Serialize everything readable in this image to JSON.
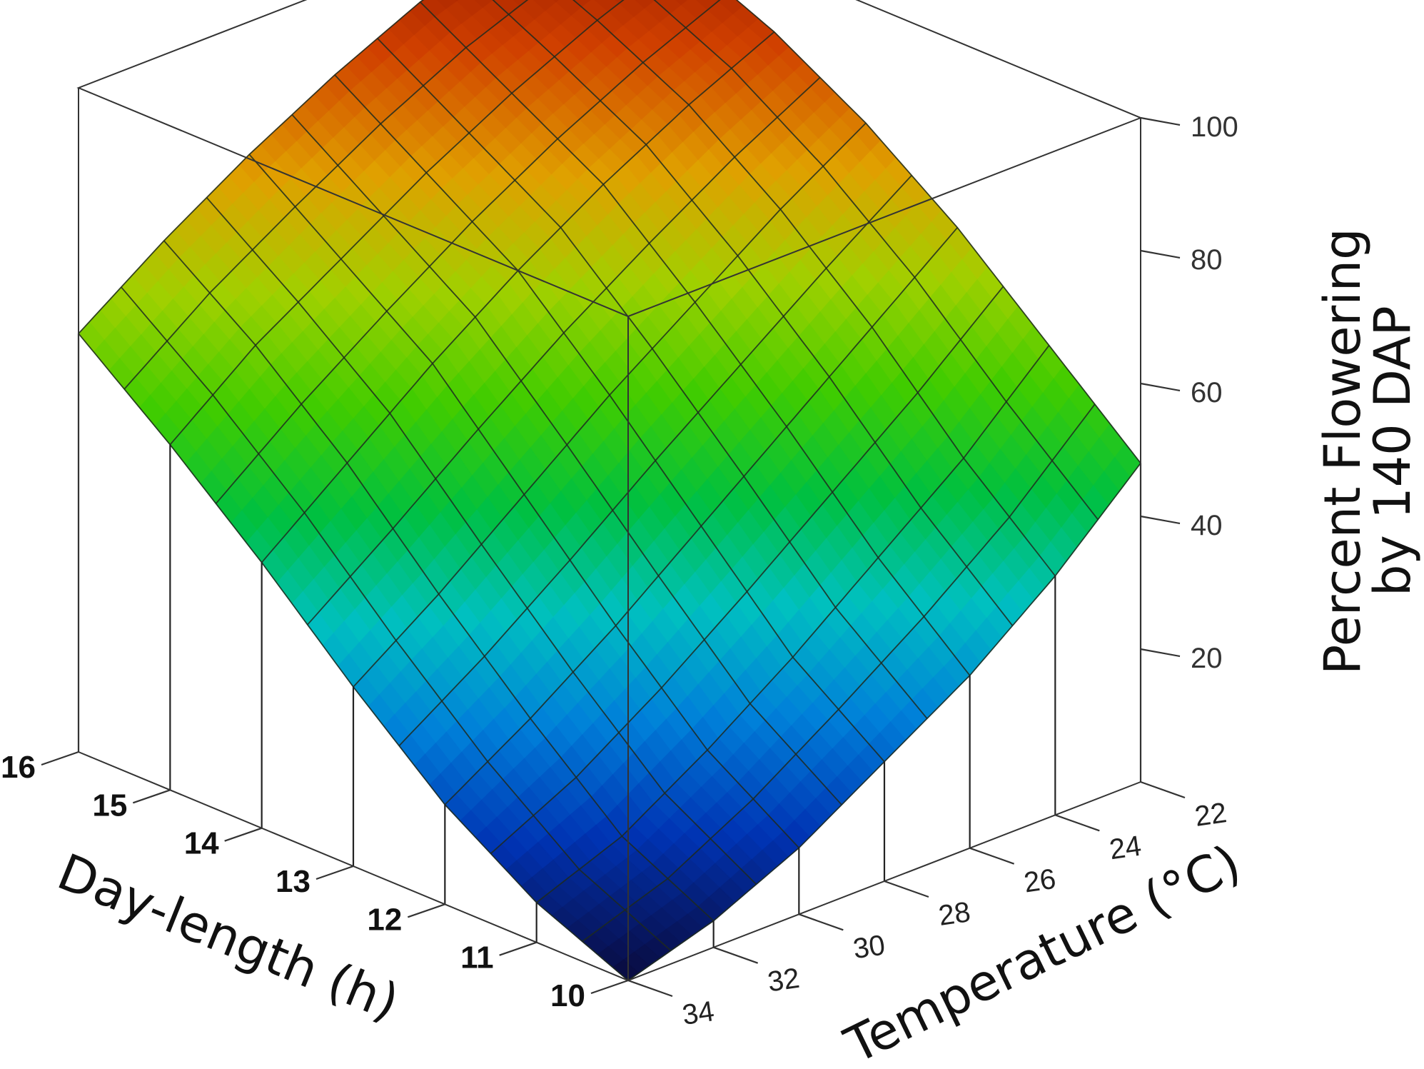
{
  "chart_data": {
    "type": "surface",
    "title": "",
    "zlabel_line1": "Percent Flowering",
    "zlabel_line2": "by 140 DAP",
    "xlabel": "Temperature (°C)",
    "ylabel": "Day-length (h)",
    "x_ticks": [
      "22",
      "24",
      "26",
      "28",
      "30",
      "32",
      "34"
    ],
    "y_ticks": [
      "10",
      "11",
      "12",
      "13",
      "14",
      "15",
      "16"
    ],
    "z_ticks": [
      "20",
      "40",
      "60",
      "80",
      "100"
    ],
    "xlim": [
      22,
      35
    ],
    "ylim": [
      10,
      16
    ],
    "zlim": [
      0,
      100
    ],
    "colormap": [
      "#0a0a3c",
      "#0033b3",
      "#0080d9",
      "#00c0c0",
      "#00c040",
      "#40cc00",
      "#a0d000",
      "#e0a000",
      "#d04000",
      "#8a0e00"
    ],
    "grid": true,
    "surface_samples": {
      "description_of_axes": "rows = day-length 10..16 h, cols = temperature 22..34 °C",
      "temperature": [
        22,
        24,
        26,
        28,
        30,
        32,
        34
      ],
      "day_length": [
        10,
        11,
        12,
        13,
        14,
        15,
        16
      ],
      "percent": [
        [
          48,
          36,
          26,
          18,
          10,
          4,
          0
        ],
        [
          60,
          48,
          38,
          28,
          19,
          11,
          6
        ],
        [
          72,
          62,
          52,
          42,
          32,
          23,
          15
        ],
        [
          82,
          74,
          65,
          56,
          46,
          36,
          27
        ],
        [
          90,
          84,
          77,
          69,
          60,
          50,
          40
        ],
        [
          96,
          91,
          85,
          78,
          70,
          62,
          52
        ],
        [
          100,
          97,
          93,
          87,
          80,
          72,
          63
        ]
      ]
    }
  }
}
